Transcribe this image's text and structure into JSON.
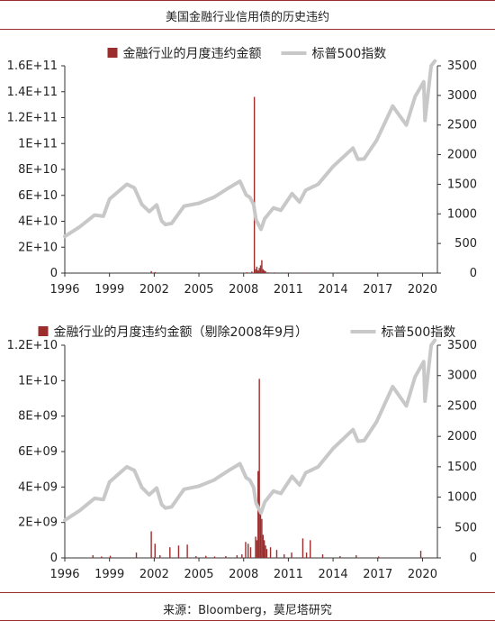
{
  "title": "美国金融行业信用债的历史违约",
  "source": "来源：Bloomberg，莫尼塔研究",
  "colors": {
    "bars": "#9b2d2d",
    "line": "#c8c8c8",
    "rule": "#9b2d2d"
  },
  "chart_data": [
    {
      "type": "bar+line",
      "legend": {
        "bar": "金融行业的月度违约金额",
        "line": "标普500指数",
        "placement": "top"
      },
      "x_ticks": [
        "1996",
        "1999",
        "2002",
        "2005",
        "2008",
        "2011",
        "2014",
        "2017",
        "2020"
      ],
      "xlim": [
        "1996-01",
        "2020-12"
      ],
      "left_axis": {
        "ticks": [
          "0",
          "2E+10",
          "4E+10",
          "6E+10",
          "8E+10",
          "1E+11",
          "1.2E+11",
          "1.4E+11",
          "1.6E+11"
        ],
        "ylim": [
          0,
          160000000000
        ]
      },
      "right_axis": {
        "ticks": [
          "0",
          "500",
          "1000",
          "1500",
          "2000",
          "2500",
          "3000",
          "3500"
        ],
        "ylim": [
          0,
          3500
        ]
      },
      "bar_series": {
        "name": "金融行业的月度违约金额",
        "points": [
          [
            "2001-10",
            1500000000
          ],
          [
            "2002-01",
            800000000
          ],
          [
            "2008-03",
            600000000
          ],
          [
            "2008-07",
            1200000000
          ],
          [
            "2008-09",
            136000000000
          ],
          [
            "2008-10",
            3000000000
          ],
          [
            "2008-11",
            5000000000
          ],
          [
            "2008-12",
            2000000000
          ],
          [
            "2009-01",
            4000000000
          ],
          [
            "2009-02",
            6000000000
          ],
          [
            "2009-03",
            10000000000
          ],
          [
            "2009-04",
            3000000000
          ],
          [
            "2009-05",
            2000000000
          ],
          [
            "2009-06",
            1500000000
          ],
          [
            "2009-08",
            600000000
          ],
          [
            "2010-01",
            500000000
          ],
          [
            "2012-03",
            400000000
          ]
        ]
      },
      "line_series": {
        "name": "标普500指数",
        "points": [
          [
            "1996-01",
            620
          ],
          [
            "1997-01",
            780
          ],
          [
            "1998-01",
            980
          ],
          [
            "1998-08",
            960
          ],
          [
            "1999-01",
            1250
          ],
          [
            "2000-03",
            1500
          ],
          [
            "2000-09",
            1440
          ],
          [
            "2001-03",
            1160
          ],
          [
            "2001-09",
            1040
          ],
          [
            "2002-03",
            1150
          ],
          [
            "2002-07",
            880
          ],
          [
            "2002-10",
            820
          ],
          [
            "2003-03",
            840
          ],
          [
            "2004-01",
            1130
          ],
          [
            "2005-01",
            1180
          ],
          [
            "2006-01",
            1280
          ],
          [
            "2007-01",
            1440
          ],
          [
            "2007-10",
            1550
          ],
          [
            "2008-03",
            1320
          ],
          [
            "2008-06",
            1280
          ],
          [
            "2008-09",
            1160
          ],
          [
            "2008-11",
            900
          ],
          [
            "2009-03",
            740
          ],
          [
            "2009-06",
            920
          ],
          [
            "2010-01",
            1100
          ],
          [
            "2010-07",
            1060
          ],
          [
            "2011-04",
            1340
          ],
          [
            "2011-10",
            1200
          ],
          [
            "2012-03",
            1400
          ],
          [
            "2013-01",
            1500
          ],
          [
            "2014-01",
            1800
          ],
          [
            "2015-05",
            2110
          ],
          [
            "2015-09",
            1920
          ],
          [
            "2016-02",
            1930
          ],
          [
            "2016-12",
            2240
          ],
          [
            "2018-01",
            2820
          ],
          [
            "2018-12",
            2500
          ],
          [
            "2019-07",
            2980
          ],
          [
            "2020-02",
            3230
          ],
          [
            "2020-03",
            2580
          ],
          [
            "2020-08",
            3500
          ],
          [
            "2020-11",
            3580
          ]
        ]
      }
    },
    {
      "type": "bar+line",
      "legend": {
        "bar": "金融行业的月度违约金额（剔除2008年9月）",
        "line": "标普500指数",
        "placement": "top"
      },
      "x_ticks": [
        "1996",
        "1999",
        "2002",
        "2005",
        "2008",
        "2011",
        "2014",
        "2017",
        "2020"
      ],
      "xlim": [
        "1996-01",
        "2020-12"
      ],
      "left_axis": {
        "ticks": [
          "0",
          "2E+09",
          "4E+09",
          "6E+09",
          "8E+09",
          "1E+10",
          "1.2E+10"
        ],
        "ylim": [
          0,
          12000000000
        ]
      },
      "right_axis": {
        "ticks": [
          "0",
          "500",
          "1000",
          "1500",
          "2000",
          "2500",
          "3000",
          "3500"
        ],
        "ylim": [
          0,
          3500
        ]
      },
      "bar_series": {
        "name": "金融行业的月度违约金额（剔除2008年9月）",
        "points": [
          [
            "1997-11",
            150000000
          ],
          [
            "1998-06",
            80000000
          ],
          [
            "1999-01",
            120000000
          ],
          [
            "2000-10",
            300000000
          ],
          [
            "2001-10",
            1500000000
          ],
          [
            "2002-01",
            800000000
          ],
          [
            "2002-05",
            150000000
          ],
          [
            "2003-01",
            600000000
          ],
          [
            "2003-08",
            700000000
          ],
          [
            "2004-03",
            750000000
          ],
          [
            "2004-10",
            100000000
          ],
          [
            "2005-06",
            120000000
          ],
          [
            "2006-01",
            80000000
          ],
          [
            "2006-10",
            100000000
          ],
          [
            "2007-07",
            150000000
          ],
          [
            "2007-11",
            200000000
          ],
          [
            "2008-02",
            900000000
          ],
          [
            "2008-04",
            800000000
          ],
          [
            "2008-06",
            600000000
          ],
          [
            "2008-10",
            1200000000
          ],
          [
            "2008-11",
            1000000000
          ],
          [
            "2008-12",
            4900000000
          ],
          [
            "2009-01",
            10100000000
          ],
          [
            "2009-02",
            2500000000
          ],
          [
            "2009-03",
            2200000000
          ],
          [
            "2009-04",
            1300000000
          ],
          [
            "2009-05",
            1000000000
          ],
          [
            "2009-06",
            700000000
          ],
          [
            "2009-07",
            500000000
          ],
          [
            "2009-10",
            600000000
          ],
          [
            "2010-03",
            450000000
          ],
          [
            "2010-09",
            200000000
          ],
          [
            "2011-03",
            300000000
          ],
          [
            "2011-12",
            1100000000
          ],
          [
            "2012-03",
            300000000
          ],
          [
            "2012-06",
            1000000000
          ],
          [
            "2013-04",
            200000000
          ],
          [
            "2014-06",
            100000000
          ],
          [
            "2015-07",
            150000000
          ],
          [
            "2017-01",
            80000000
          ],
          [
            "2019-11",
            400000000
          ]
        ]
      },
      "line_series": {
        "name": "标普500指数",
        "points": [
          [
            "1996-01",
            620
          ],
          [
            "1997-01",
            780
          ],
          [
            "1998-01",
            980
          ],
          [
            "1998-08",
            960
          ],
          [
            "1999-01",
            1250
          ],
          [
            "2000-03",
            1500
          ],
          [
            "2000-09",
            1440
          ],
          [
            "2001-03",
            1160
          ],
          [
            "2001-09",
            1040
          ],
          [
            "2002-03",
            1150
          ],
          [
            "2002-07",
            880
          ],
          [
            "2002-10",
            820
          ],
          [
            "2003-03",
            840
          ],
          [
            "2004-01",
            1130
          ],
          [
            "2005-01",
            1180
          ],
          [
            "2006-01",
            1280
          ],
          [
            "2007-01",
            1440
          ],
          [
            "2007-10",
            1550
          ],
          [
            "2008-03",
            1320
          ],
          [
            "2008-06",
            1280
          ],
          [
            "2008-09",
            1160
          ],
          [
            "2008-11",
            900
          ],
          [
            "2009-03",
            740
          ],
          [
            "2009-06",
            920
          ],
          [
            "2010-01",
            1100
          ],
          [
            "2010-07",
            1060
          ],
          [
            "2011-04",
            1340
          ],
          [
            "2011-10",
            1200
          ],
          [
            "2012-03",
            1400
          ],
          [
            "2013-01",
            1500
          ],
          [
            "2014-01",
            1800
          ],
          [
            "2015-05",
            2110
          ],
          [
            "2015-09",
            1920
          ],
          [
            "2016-02",
            1930
          ],
          [
            "2016-12",
            2240
          ],
          [
            "2018-01",
            2820
          ],
          [
            "2018-12",
            2500
          ],
          [
            "2019-07",
            2980
          ],
          [
            "2020-02",
            3230
          ],
          [
            "2020-03",
            2580
          ],
          [
            "2020-08",
            3500
          ],
          [
            "2020-11",
            3580
          ]
        ]
      }
    }
  ]
}
